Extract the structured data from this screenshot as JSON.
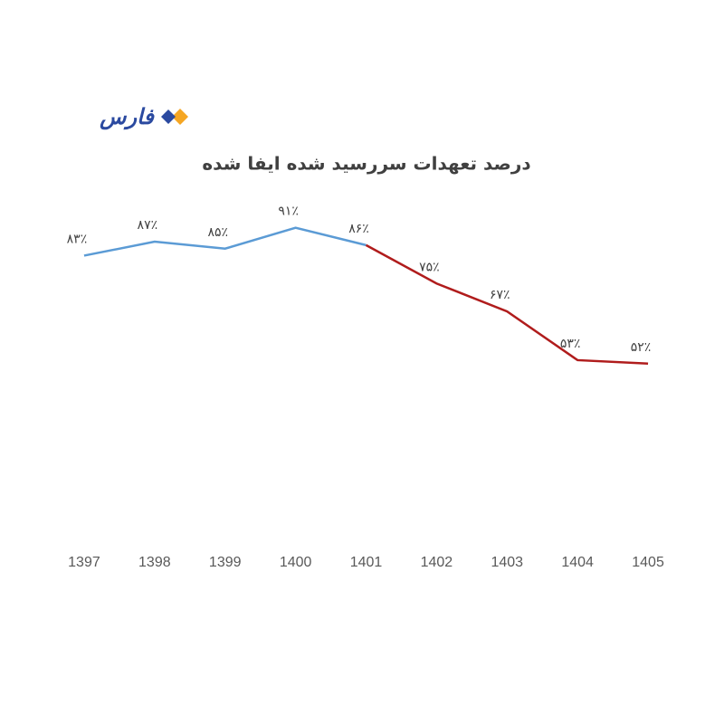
{
  "logo": "فارس",
  "chart_data": {
    "type": "line",
    "title": "درصد تعهدات سررسید شده ایفا شده",
    "categories": [
      "1397",
      "1398",
      "1399",
      "1400",
      "1401",
      "1402",
      "1403",
      "1404",
      "1405"
    ],
    "series": [
      {
        "color": "#5b9bd5",
        "values": [
          83,
          87,
          85,
          91,
          86,
          null,
          null,
          null,
          null
        ],
        "value_labels": [
          "۸۳٪",
          "۸۷٪",
          "۸۵٪",
          "۹۱٪",
          "۸۶٪",
          null,
          null,
          null,
          null
        ]
      },
      {
        "color": "#b01c1c",
        "values": [
          null,
          null,
          null,
          null,
          86,
          75,
          67,
          53,
          52
        ],
        "value_labels": [
          null,
          null,
          null,
          null,
          null,
          "۷۵٪",
          "۶۷٪",
          "۵۳٪",
          "۵۲٪"
        ]
      }
    ],
    "ylim": [
      0,
      100
    ]
  }
}
